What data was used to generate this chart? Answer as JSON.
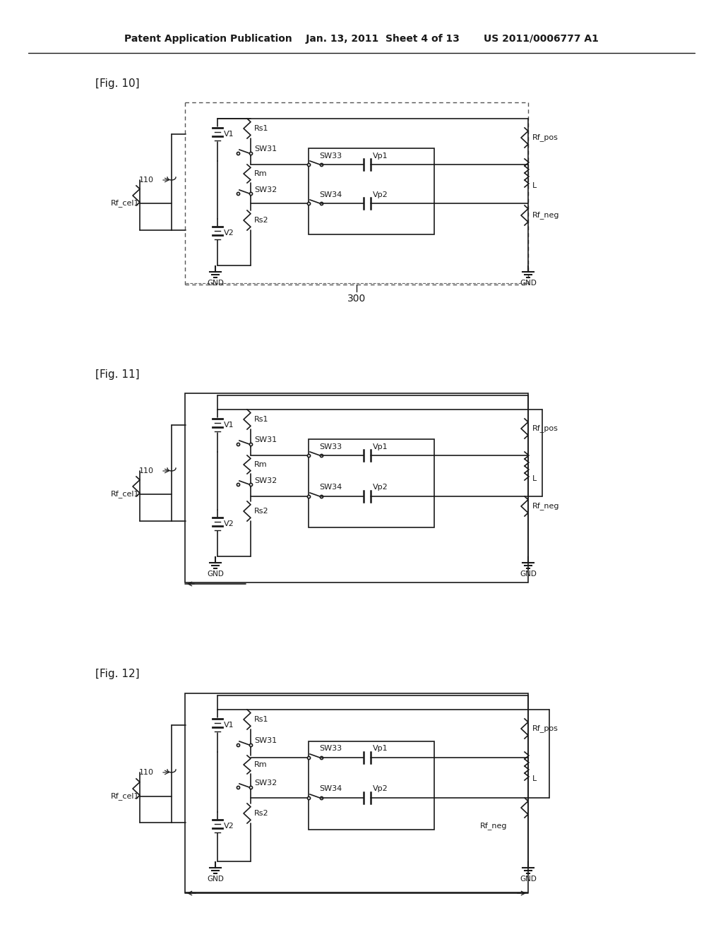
{
  "bg_color": "#ffffff",
  "title_line": "Patent Application Publication    Jan. 13, 2011  Sheet 4 of 13       US 2011/0006777 A1",
  "fig_labels": [
    "[Fig. 10]",
    "[Fig. 11]",
    "[Fig. 12]"
  ],
  "label_300": "300"
}
